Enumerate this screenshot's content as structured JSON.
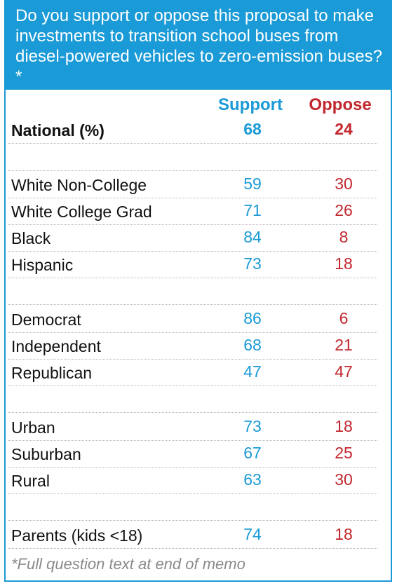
{
  "header": {
    "question": "Do you support or oppose this proposal to make investments to transition school buses from diesel-powered vehicles to zero-emission buses?*"
  },
  "colors": {
    "accent": "#1a9ad6",
    "support": "#1a9ad6",
    "oppose": "#c1272d"
  },
  "chart_data": {
    "type": "table",
    "columns": [
      "Support",
      "Oppose"
    ],
    "rows": [
      {
        "label": "National (%)",
        "support": "68",
        "oppose": "24",
        "bold": true
      },
      {
        "label": "White Non-College",
        "support": "59",
        "oppose": "30"
      },
      {
        "label": "White College Grad",
        "support": "71",
        "oppose": "26"
      },
      {
        "label": "Black",
        "support": "84",
        "oppose": "8"
      },
      {
        "label": "Hispanic",
        "support": "73",
        "oppose": "18"
      },
      {
        "label": "Democrat",
        "support": "86",
        "oppose": "6"
      },
      {
        "label": "Independent",
        "support": "68",
        "oppose": "21"
      },
      {
        "label": "Republican",
        "support": "47",
        "oppose": "47"
      },
      {
        "label": "Urban",
        "support": "73",
        "oppose": "18"
      },
      {
        "label": "Suburban",
        "support": "67",
        "oppose": "25"
      },
      {
        "label": "Rural",
        "support": "63",
        "oppose": "30"
      },
      {
        "label": "Parents (kids <18)",
        "support": "74",
        "oppose": "18"
      }
    ]
  },
  "footnote": "*Full question text at end of memo"
}
